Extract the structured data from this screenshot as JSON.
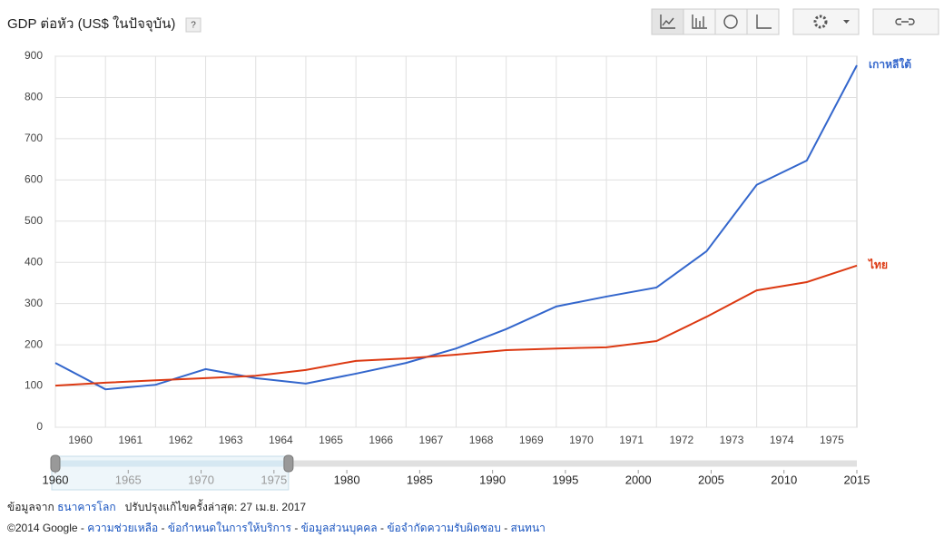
{
  "chart_data": {
    "type": "line",
    "title": "GDP ต่อหัว (US$ ในปัจจุบัน)",
    "help": "?",
    "x": [
      1960,
      1961,
      1962,
      1963,
      1964,
      1965,
      1966,
      1967,
      1968,
      1969,
      1970,
      1971,
      1972,
      1973,
      1974,
      1975,
      1976
    ],
    "series": [
      {
        "name": "เกาหลีใต้",
        "color": "#3366cc",
        "values": [
          156,
          92,
          103,
          141,
          119,
          106,
          130,
          156,
          191,
          238,
          293,
          317,
          339,
          427,
          588,
          647,
          878
        ]
      },
      {
        "name": "ไทย",
        "color": "#dc3912",
        "values": [
          101,
          108,
          114,
          119,
          125,
          139,
          161,
          167,
          176,
          187,
          191,
          194,
          209,
          268,
          332,
          352,
          392
        ]
      }
    ],
    "xlim": [
      1960,
      1976
    ],
    "xticks": [
      1960,
      1961,
      1962,
      1963,
      1964,
      1965,
      1966,
      1967,
      1968,
      1969,
      1970,
      1971,
      1972,
      1973,
      1974,
      1975
    ],
    "ylim": [
      0,
      900
    ],
    "yticks": [
      0,
      100,
      200,
      300,
      400,
      500,
      600,
      700,
      800,
      900
    ],
    "grid": true
  },
  "timeline": {
    "ticks": [
      1960,
      1965,
      1970,
      1975,
      1980,
      1985,
      1990,
      1995,
      2000,
      2005,
      2010,
      2015
    ]
  },
  "source": {
    "prefix": "ข้อมูลจาก",
    "link": "ธนาคารโลก",
    "updated": "ปรับปรุงแก้ไขครั้งล่าสุด: 27 เม.ย. 2017"
  },
  "footer": {
    "copyright": "©2014 Google",
    "separator": "-",
    "links": [
      "ความช่วยเหลือ",
      "ข้อกำหนดในการให้บริการ",
      "ข้อมูลส่วนบุคคล",
      "ข้อจำกัดความรับผิดชอบ",
      "สนทนา"
    ]
  }
}
